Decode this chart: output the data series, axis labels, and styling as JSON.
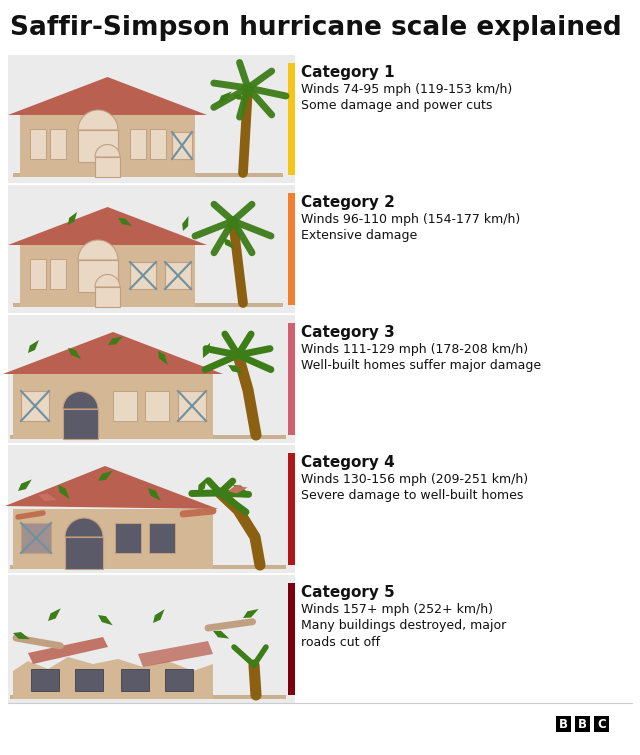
{
  "title": "Saffir-Simpson hurricane scale explained",
  "title_fontsize": 19,
  "background_color": "#ffffff",
  "row_bg_color": "#ebebeb",
  "categories": [
    {
      "name": "Category 1",
      "line1": "Winds 74-95 mph (119-153 km/h)",
      "line2": "Some damage and power cuts",
      "bar_color": "#f5c518",
      "row_bg": "#ebebeb"
    },
    {
      "name": "Category 2",
      "line1": "Winds 96-110 mph (154-177 km/h)",
      "line2": "Extensive damage",
      "bar_color": "#f08030",
      "row_bg": "#ebebeb"
    },
    {
      "name": "Category 3",
      "line1": "Winds 111-129 mph (178-208 km/h)",
      "line2": "Well-built homes suffer major damage",
      "bar_color": "#d06070",
      "row_bg": "#ebebeb"
    },
    {
      "name": "Category 4",
      "line1": "Winds 130-156 mph (209-251 km/h)",
      "line2": "Severe damage to well-built homes",
      "bar_color": "#b01818",
      "row_bg": "#ebebeb"
    },
    {
      "name": "Category 5",
      "line1": "Winds 157+ mph (252+ km/h)",
      "line2": "Many buildings destroyed, major\nroads cut off",
      "bar_color": "#7a0010",
      "row_bg": "#ebebeb"
    }
  ],
  "house_body_color": "#d4b896",
  "roof_color": "#b96050",
  "win_light": "#e8d8c4",
  "win_dark": "#5a5a68",
  "win_border": "#c0a080",
  "door_arch_color": "#c0a080",
  "palm_trunk": "#8b6010",
  "palm_leaf": "#3d7d18",
  "ground_color": "#c8b090",
  "separator_color": "#cccccc",
  "text_color": "#111111",
  "bbc_bg": "#000000",
  "bbc_text": "#ffffff"
}
